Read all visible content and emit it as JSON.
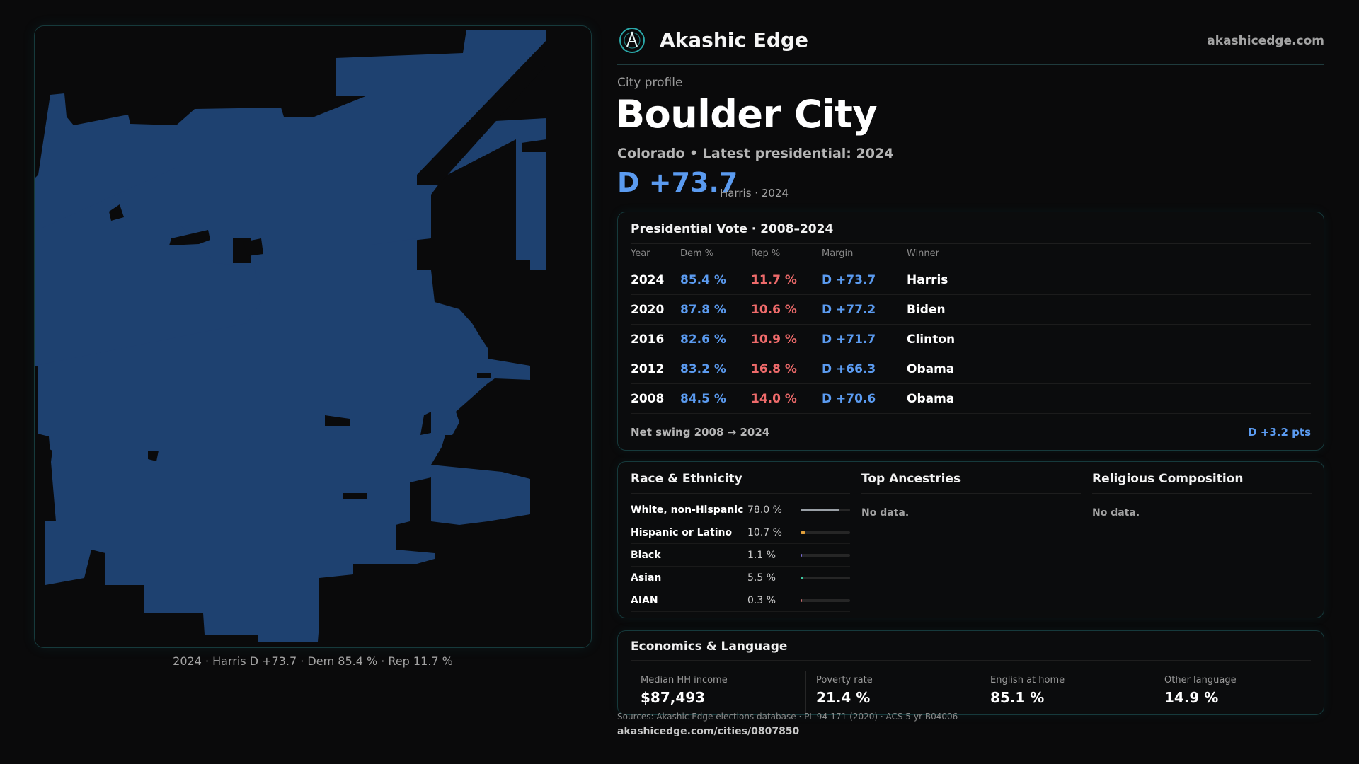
{
  "brand": {
    "name": "Akashic Edge",
    "url": "akashicedge.com",
    "logo_icon": "atom-compass-icon",
    "accent": "#2aa7a8"
  },
  "profile": {
    "label": "City profile",
    "city": "Boulder City",
    "subtitle": "Colorado • Latest presidential: 2024",
    "margin": "D +73.7",
    "margin_note": "Harris · 2024"
  },
  "map": {
    "caption": "2024 · Harris D +73.7 · Dem 85.4 % · Rep 11.7 %",
    "fill_color": "#1e4170"
  },
  "vote": {
    "title": "Presidential Vote · 2008–2024",
    "headers": {
      "year": "Year",
      "dem": "Dem %",
      "rep": "Rep %",
      "margin": "Margin",
      "winner": "Winner"
    },
    "rows": [
      {
        "year": "2024",
        "dem": "85.4 %",
        "rep": "11.7 %",
        "margin": "D +73.7",
        "winner": "Harris"
      },
      {
        "year": "2020",
        "dem": "87.8 %",
        "rep": "10.6 %",
        "margin": "D +77.2",
        "winner": "Biden"
      },
      {
        "year": "2016",
        "dem": "82.6 %",
        "rep": "10.9 %",
        "margin": "D +71.7",
        "winner": "Clinton"
      },
      {
        "year": "2012",
        "dem": "83.2 %",
        "rep": "16.8 %",
        "margin": "D +66.3",
        "winner": "Obama"
      },
      {
        "year": "2008",
        "dem": "84.5 %",
        "rep": "14.0 %",
        "margin": "D +70.6",
        "winner": "Obama"
      }
    ],
    "net_label": "Net swing 2008 → 2024",
    "net_value": "D +3.2 pts"
  },
  "race": {
    "title": "Race & Ethnicity",
    "rows": [
      {
        "label": "White, non-Hispanic",
        "value": "78.0 %",
        "pct": 78.0,
        "color": "#9aa0a6"
      },
      {
        "label": "Hispanic or Latino",
        "value": "10.7 %",
        "pct": 10.7,
        "color": "#e2a03a"
      },
      {
        "label": "Black",
        "value": "1.1 %",
        "pct": 1.1,
        "color": "#7a6ad8"
      },
      {
        "label": "Asian",
        "value": "5.5 %",
        "pct": 5.5,
        "color": "#3cc9a0"
      },
      {
        "label": "AIAN",
        "value": "0.3 %",
        "pct": 0.3,
        "color": "#c86a6a"
      }
    ]
  },
  "ancestries": {
    "title": "Top Ancestries",
    "empty": "No data."
  },
  "religion": {
    "title": "Religious Composition",
    "empty": "No data."
  },
  "economics": {
    "title": "Economics & Language",
    "items": [
      {
        "label": "Median HH income",
        "value": "$87,493"
      },
      {
        "label": "Poverty rate",
        "value": "21.4 %"
      },
      {
        "label": "English at home",
        "value": "85.1 %"
      },
      {
        "label": "Other language",
        "value": "14.9 %"
      }
    ]
  },
  "footer": {
    "sources": "Sources: Akashic Edge elections database · PL 94-171 (2020) · ACS 5-yr B04006",
    "url": "akashicedge.com/cities/0807850"
  }
}
